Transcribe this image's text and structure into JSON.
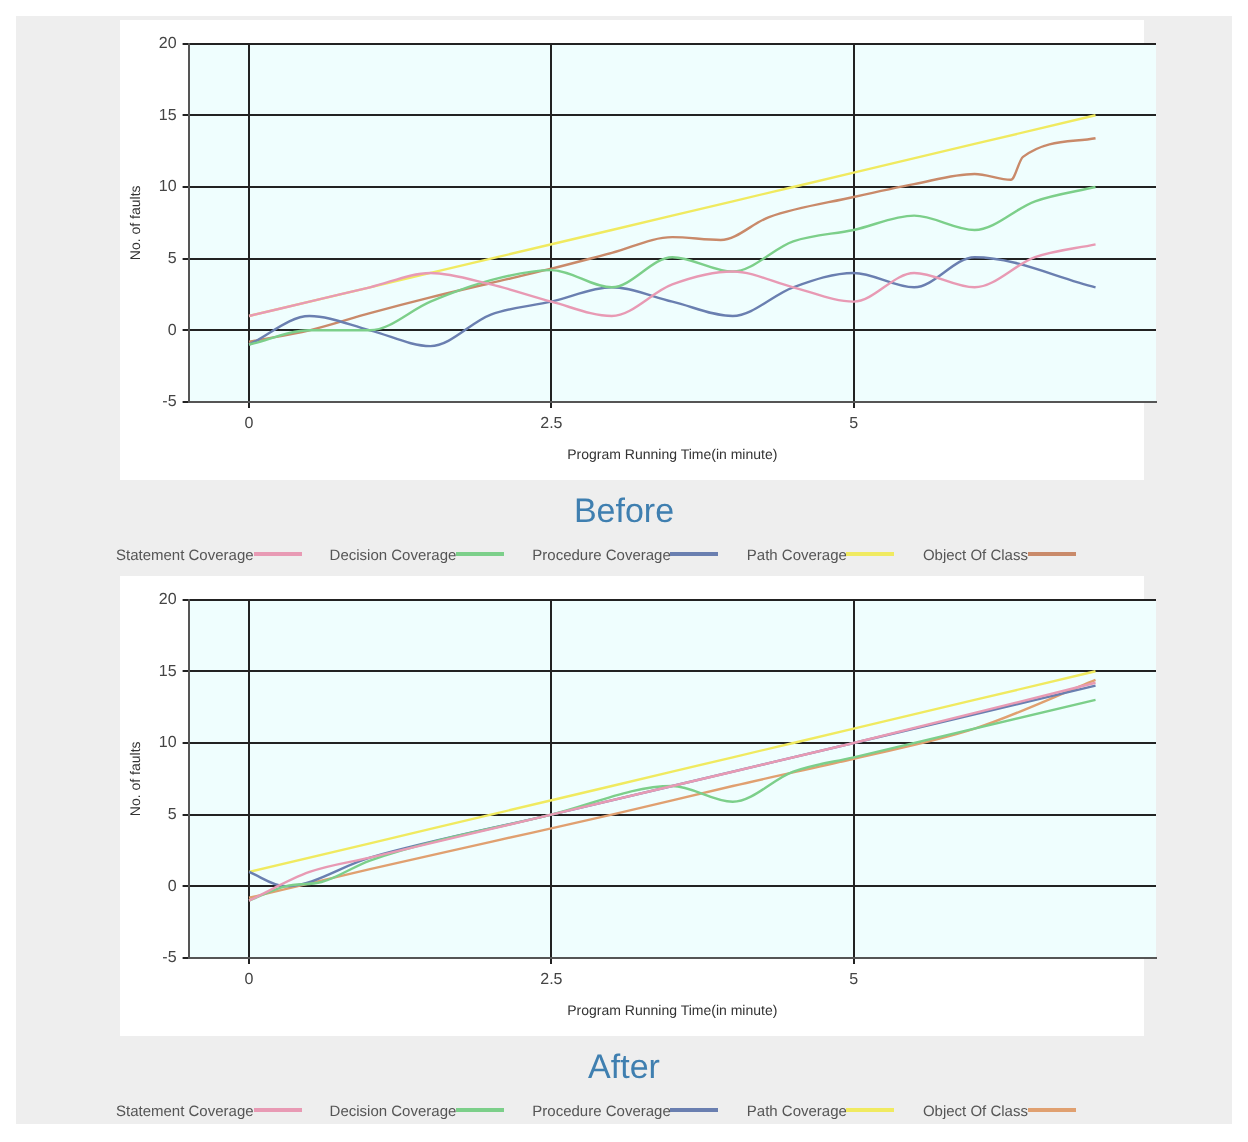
{
  "chart_data": [
    {
      "type": "line",
      "title": "Before",
      "xlabel": "Program Running Time(in minute)",
      "ylabel": "No. of faults",
      "xlim": [
        -0.5,
        7.5
      ],
      "xticks": [
        0,
        2.5,
        5
      ],
      "ylim": [
        -5,
        20
      ],
      "yticks": [
        -5,
        0,
        5,
        10,
        15,
        20
      ],
      "grid": true,
      "legend": "bottom",
      "series": [
        {
          "name": "Statement Coverage",
          "color": "#e89ab4",
          "x": [
            0,
            0.5,
            1,
            1.5,
            2,
            2.5,
            3,
            3.5,
            4,
            4.5,
            5,
            5.5,
            6,
            6.5,
            7
          ],
          "values": [
            1,
            2,
            3,
            4,
            3.2,
            2,
            1,
            3.2,
            4.1,
            3,
            2,
            4,
            3,
            5.1,
            6
          ]
        },
        {
          "name": "Decision Coverage",
          "color": "#7ccf8a",
          "x": [
            0,
            0.5,
            1,
            1.5,
            2,
            2.5,
            3,
            3.5,
            4,
            4.5,
            5,
            5.5,
            6,
            6.5,
            7
          ],
          "values": [
            -1,
            0,
            0,
            2,
            3.5,
            4.2,
            3,
            5.1,
            4.1,
            6.2,
            7,
            8,
            7,
            9,
            10
          ]
        },
        {
          "name": "Procedure Coverage",
          "color": "#6a7fb0",
          "x": [
            0,
            0.5,
            1,
            1.5,
            2,
            2.5,
            3,
            3.5,
            4,
            4.5,
            5,
            5.5,
            6,
            7
          ],
          "values": [
            -1,
            1,
            0,
            -1.1,
            1.1,
            2,
            3,
            2,
            1,
            3,
            4,
            3,
            5.1,
            3
          ]
        },
        {
          "name": "Path Coverage",
          "color": "#f0ea60",
          "x": [
            0,
            1,
            2,
            3,
            4,
            5,
            6,
            7
          ],
          "values": [
            1,
            3,
            5,
            7,
            9,
            11,
            13,
            15
          ]
        },
        {
          "name": "Object Of Class",
          "color": "#c98a6a",
          "x": [
            0,
            0.5,
            1,
            1.5,
            2,
            2.5,
            3,
            3.5,
            3.9,
            4.3,
            5,
            5.5,
            6,
            6.3,
            6.4,
            7
          ],
          "values": [
            -0.8,
            0,
            1.2,
            2.3,
            3.3,
            4.3,
            5.4,
            6.5,
            6.3,
            7.9,
            9.3,
            10.2,
            10.9,
            10.5,
            12.1,
            13.4
          ]
        }
      ]
    },
    {
      "type": "line",
      "title": "After",
      "xlabel": "Program Running Time(in minute)",
      "ylabel": "No. of faults",
      "xlim": [
        -0.5,
        7.5
      ],
      "xticks": [
        0,
        2.5,
        5
      ],
      "ylim": [
        -5,
        20
      ],
      "yticks": [
        -5,
        0,
        5,
        10,
        15,
        20
      ],
      "grid": true,
      "legend": "bottom",
      "series": [
        {
          "name": "Statement Coverage",
          "color": "#e89ab4",
          "x": [
            0,
            0.5,
            1,
            2.5,
            3.5,
            5,
            7
          ],
          "values": [
            -1,
            1,
            2,
            5,
            7,
            10,
            14.2
          ]
        },
        {
          "name": "Decision Coverage",
          "color": "#7ccf8a",
          "x": [
            0,
            0.3,
            0.6,
            1,
            2.5,
            3.5,
            4,
            4.5,
            5,
            7
          ],
          "values": [
            -1,
            0,
            0.3,
            1.8,
            5,
            7,
            5.9,
            8,
            9,
            13
          ]
        },
        {
          "name": "Procedure Coverage",
          "color": "#6a7fb0",
          "x": [
            0,
            0.3,
            1,
            2.5,
            3.5,
            5,
            7
          ],
          "values": [
            1,
            0,
            2,
            5,
            7,
            10,
            14
          ]
        },
        {
          "name": "Path Coverage",
          "color": "#f0ea60",
          "x": [
            0,
            1,
            2,
            3,
            4,
            5,
            6,
            7
          ],
          "values": [
            1,
            3,
            5,
            7,
            9,
            11,
            13,
            15
          ]
        },
        {
          "name": "Object Of Class",
          "color": "#e0a070",
          "x": [
            0,
            1,
            2,
            3,
            4,
            5,
            6,
            7
          ],
          "values": [
            -0.8,
            1.2,
            3.1,
            5,
            7,
            8.9,
            11,
            14.4
          ]
        }
      ]
    }
  ]
}
